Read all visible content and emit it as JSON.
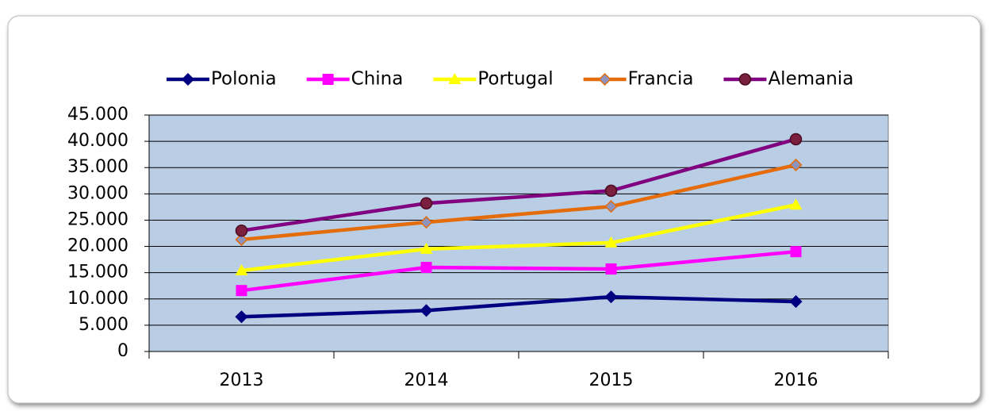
{
  "chart_data": {
    "type": "line",
    "categories": [
      "2013",
      "2014",
      "2015",
      "2016"
    ],
    "series": [
      {
        "name": "Polonia",
        "color": "#000080",
        "marker": "diamond",
        "values": [
          6600,
          7800,
          10400,
          9500
        ]
      },
      {
        "name": "China",
        "color": "#ff00ff",
        "marker": "square",
        "values": [
          11600,
          16000,
          15700,
          19000
        ]
      },
      {
        "name": "Portugal",
        "color": "#ffff00",
        "marker": "triangle",
        "values": [
          15400,
          19500,
          20700,
          27900
        ]
      },
      {
        "name": "Francia",
        "color": "#e46c0a",
        "marker": "diamond",
        "values": [
          21300,
          24600,
          27600,
          35500
        ]
      },
      {
        "name": "Alemania",
        "color": "#800080",
        "marker": "circle",
        "values": [
          23000,
          28200,
          30600,
          40400
        ]
      }
    ],
    "ylim": [
      0,
      45000
    ],
    "yticks": [
      0,
      {
        "value": 5000,
        "label": "5.000"
      },
      {
        "value": 10000,
        "label": "10.000"
      },
      {
        "value": 15000,
        "label": "15.000"
      },
      {
        "value": 20000,
        "label": "20.000"
      },
      {
        "value": 25000,
        "label": "25.000"
      },
      {
        "value": 30000,
        "label": "30.000"
      },
      {
        "value": 35000,
        "label": "35.000"
      },
      {
        "value": 40000,
        "label": "40.000"
      },
      {
        "value": 45000,
        "label": "45.000"
      }
    ],
    "grid": true,
    "legend": "top",
    "plot_background": "#b9cde5"
  }
}
